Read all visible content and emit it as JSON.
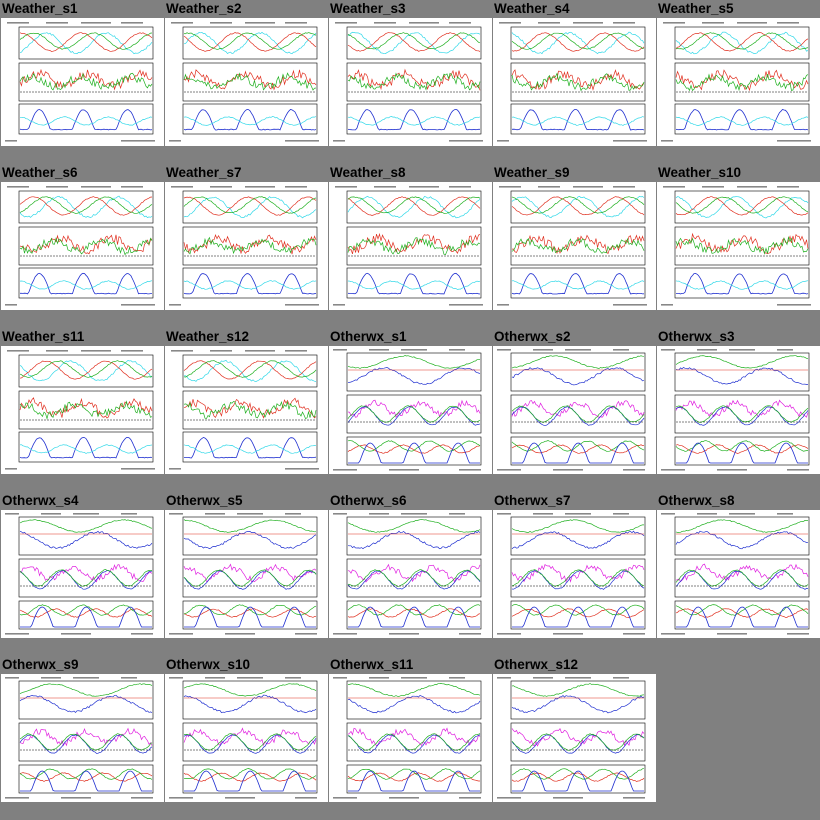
{
  "gallery": {
    "items": [
      {
        "title": "Weather_s1",
        "kind": "weather"
      },
      {
        "title": "Weather_s2",
        "kind": "weather"
      },
      {
        "title": "Weather_s3",
        "kind": "weather"
      },
      {
        "title": "Weather_s4",
        "kind": "weather"
      },
      {
        "title": "Weather_s5",
        "kind": "weather"
      },
      {
        "title": "Weather_s6",
        "kind": "weather"
      },
      {
        "title": "Weather_s7",
        "kind": "weather"
      },
      {
        "title": "Weather_s8",
        "kind": "weather"
      },
      {
        "title": "Weather_s9",
        "kind": "weather"
      },
      {
        "title": "Weather_s10",
        "kind": "weather"
      },
      {
        "title": "Weather_s11",
        "kind": "weather"
      },
      {
        "title": "Weather_s12",
        "kind": "weather"
      },
      {
        "title": "Otherwx_s1",
        "kind": "otherwx"
      },
      {
        "title": "Otherwx_s2",
        "kind": "otherwx"
      },
      {
        "title": "Otherwx_s3",
        "kind": "otherwx"
      },
      {
        "title": "Otherwx_s4",
        "kind": "otherwx"
      },
      {
        "title": "Otherwx_s5",
        "kind": "otherwx"
      },
      {
        "title": "Otherwx_s6",
        "kind": "otherwx"
      },
      {
        "title": "Otherwx_s7",
        "kind": "otherwx"
      },
      {
        "title": "Otherwx_s8",
        "kind": "otherwx"
      },
      {
        "title": "Otherwx_s9",
        "kind": "otherwx"
      },
      {
        "title": "Otherwx_s10",
        "kind": "otherwx"
      },
      {
        "title": "Otherwx_s11",
        "kind": "otherwx"
      },
      {
        "title": "Otherwx_s12",
        "kind": "otherwx"
      }
    ]
  },
  "colors": {
    "background": "#808080",
    "thumbnail_bg": "#ffffff",
    "series_red": "#e03020",
    "series_green": "#20b020",
    "series_cyan": "#30d8e8",
    "series_blue": "#2030d0",
    "series_magenta": "#e020e0"
  }
}
